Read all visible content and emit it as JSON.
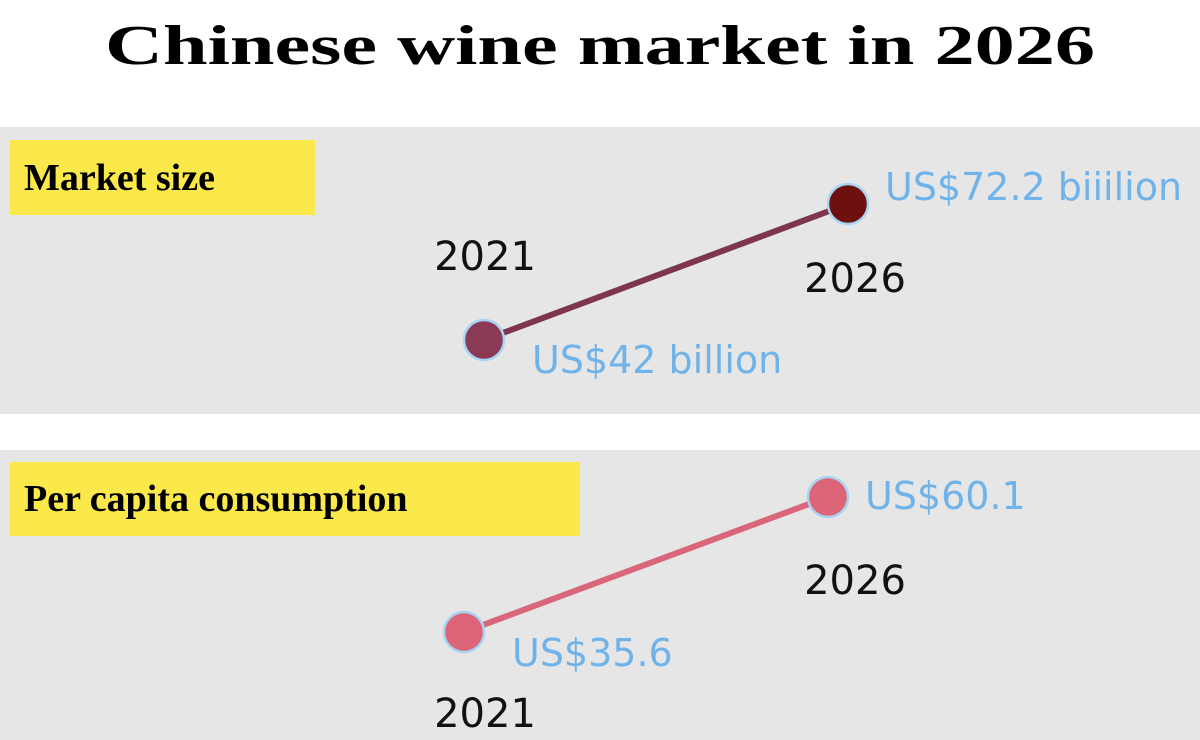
{
  "title": "Chinese wine market in 2026",
  "chart_data": [
    {
      "type": "line",
      "title": "Market size",
      "categories": [
        "2021",
        "2026"
      ],
      "values": [
        42,
        72.2
      ],
      "value_labels": [
        "US$42 billion",
        "US$72.2 biiilion"
      ],
      "color": "#7d3550",
      "point_colors": [
        "#8a3a55",
        "#6e1010"
      ]
    },
    {
      "type": "line",
      "title": "Per capita consumption",
      "categories": [
        "2021",
        "2026"
      ],
      "values": [
        35.6,
        60.1
      ],
      "value_labels": [
        "US$35.6",
        "US$60.1"
      ],
      "color": "#d9667a",
      "point_colors": [
        "#dc6677",
        "#dc6677"
      ]
    }
  ]
}
